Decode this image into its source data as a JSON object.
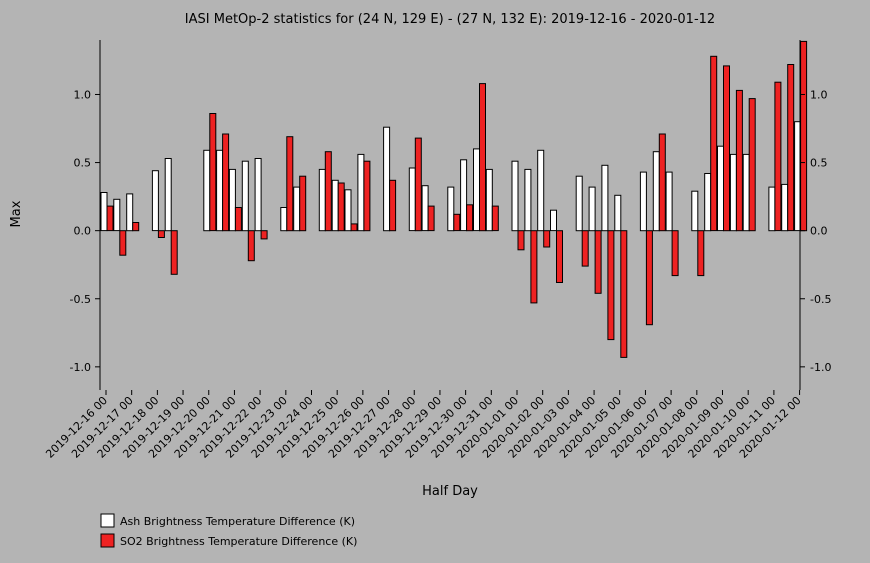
{
  "chart_data": {
    "type": "bar",
    "title": "IASI MetOp-2 statistics for (24 N, 129 E) - (27 N, 132 E): 2019-12-16 - 2020-01-12",
    "xlabel": "Half Day",
    "ylabel": "Max",
    "ylim": [
      -1.17,
      1.4
    ],
    "yticks": [
      -1.0,
      -0.5,
      0.0,
      0.5,
      1.0
    ],
    "ytick_labels": [
      "-1.0",
      "-0.5",
      "0.0",
      "0.5",
      "1.0"
    ],
    "grid": false,
    "legend_position": "bottom-left",
    "categories": [
      "2019-12-16 00",
      "2019-12-16 12",
      "2019-12-17 00",
      "2019-12-17 12",
      "2019-12-18 00",
      "2019-12-18 12",
      "2019-12-19 00",
      "2019-12-19 12",
      "2019-12-20 00",
      "2019-12-20 12",
      "2019-12-21 00",
      "2019-12-21 12",
      "2019-12-22 00",
      "2019-12-22 12",
      "2019-12-23 00",
      "2019-12-23 12",
      "2019-12-24 00",
      "2019-12-24 12",
      "2019-12-25 00",
      "2019-12-25 12",
      "2019-12-26 00",
      "2019-12-26 12",
      "2019-12-27 00",
      "2019-12-27 12",
      "2019-12-28 00",
      "2019-12-28 12",
      "2019-12-29 00",
      "2019-12-29 12",
      "2019-12-30 00",
      "2019-12-30 12",
      "2019-12-31 00",
      "2019-12-31 12",
      "2020-01-01 00",
      "2020-01-01 12",
      "2020-01-02 00",
      "2020-01-02 12",
      "2020-01-03 00",
      "2020-01-03 12",
      "2020-01-04 00",
      "2020-01-04 12",
      "2020-01-05 00",
      "2020-01-05 12",
      "2020-01-06 00",
      "2020-01-06 12",
      "2020-01-07 00",
      "2020-01-07 12",
      "2020-01-08 00",
      "2020-01-08 12",
      "2020-01-09 00",
      "2020-01-09 12",
      "2020-01-10 00",
      "2020-01-10 12",
      "2020-01-11 00",
      "2020-01-11 12",
      "2020-01-12 00"
    ],
    "tick_labels": [
      "2019-12-16 00",
      "2019-12-17 00",
      "2019-12-18 00",
      "2019-12-19 00",
      "2019-12-20 00",
      "2019-12-21 00",
      "2019-12-22 00",
      "2019-12-23 00",
      "2019-12-24 00",
      "2019-12-25 00",
      "2019-12-26 00",
      "2019-12-27 00",
      "2019-12-28 00",
      "2019-12-29 00",
      "2019-12-30 00",
      "2019-12-31 00",
      "2020-01-01 00",
      "2020-01-02 00",
      "2020-01-03 00",
      "2020-01-04 00",
      "2020-01-05 00",
      "2020-01-06 00",
      "2020-01-07 00",
      "2020-01-08 00",
      "2020-01-09 00",
      "2020-01-10 00",
      "2020-01-11 00",
      "2020-01-12 00"
    ],
    "series": [
      {
        "name": "Ash Brightness Temperature Difference (K)",
        "color": "#ffffff",
        "values": [
          0.28,
          0.23,
          0.27,
          null,
          0.44,
          0.53,
          null,
          null,
          0.59,
          0.59,
          0.45,
          0.51,
          0.53,
          null,
          0.17,
          0.32,
          null,
          0.45,
          0.37,
          0.3,
          0.56,
          null,
          0.76,
          null,
          0.46,
          0.33,
          null,
          0.32,
          0.52,
          0.6,
          0.45,
          null,
          0.51,
          0.45,
          0.59,
          0.15,
          null,
          0.4,
          0.32,
          0.48,
          0.26,
          null,
          0.43,
          0.58,
          0.43,
          null,
          0.29,
          0.42,
          0.62,
          0.56,
          0.56,
          null,
          0.32,
          0.34,
          0.8
        ]
      },
      {
        "name": "SO2 Brightness Temperature Difference (K)",
        "color": "#ee2222",
        "values": [
          0.18,
          -0.18,
          0.06,
          null,
          -0.05,
          -0.32,
          null,
          null,
          0.86,
          0.71,
          0.17,
          -0.22,
          -0.06,
          null,
          0.69,
          0.4,
          null,
          0.58,
          0.35,
          0.05,
          0.51,
          null,
          0.37,
          null,
          0.68,
          0.18,
          null,
          0.12,
          0.19,
          1.08,
          0.18,
          null,
          -0.14,
          -0.53,
          -0.12,
          -0.38,
          null,
          -0.26,
          -0.46,
          -0.8,
          -0.93,
          null,
          -0.69,
          0.71,
          -0.33,
          null,
          -0.33,
          1.28,
          1.21,
          1.03,
          0.97,
          null,
          1.09,
          1.22,
          1.39
        ]
      }
    ]
  }
}
